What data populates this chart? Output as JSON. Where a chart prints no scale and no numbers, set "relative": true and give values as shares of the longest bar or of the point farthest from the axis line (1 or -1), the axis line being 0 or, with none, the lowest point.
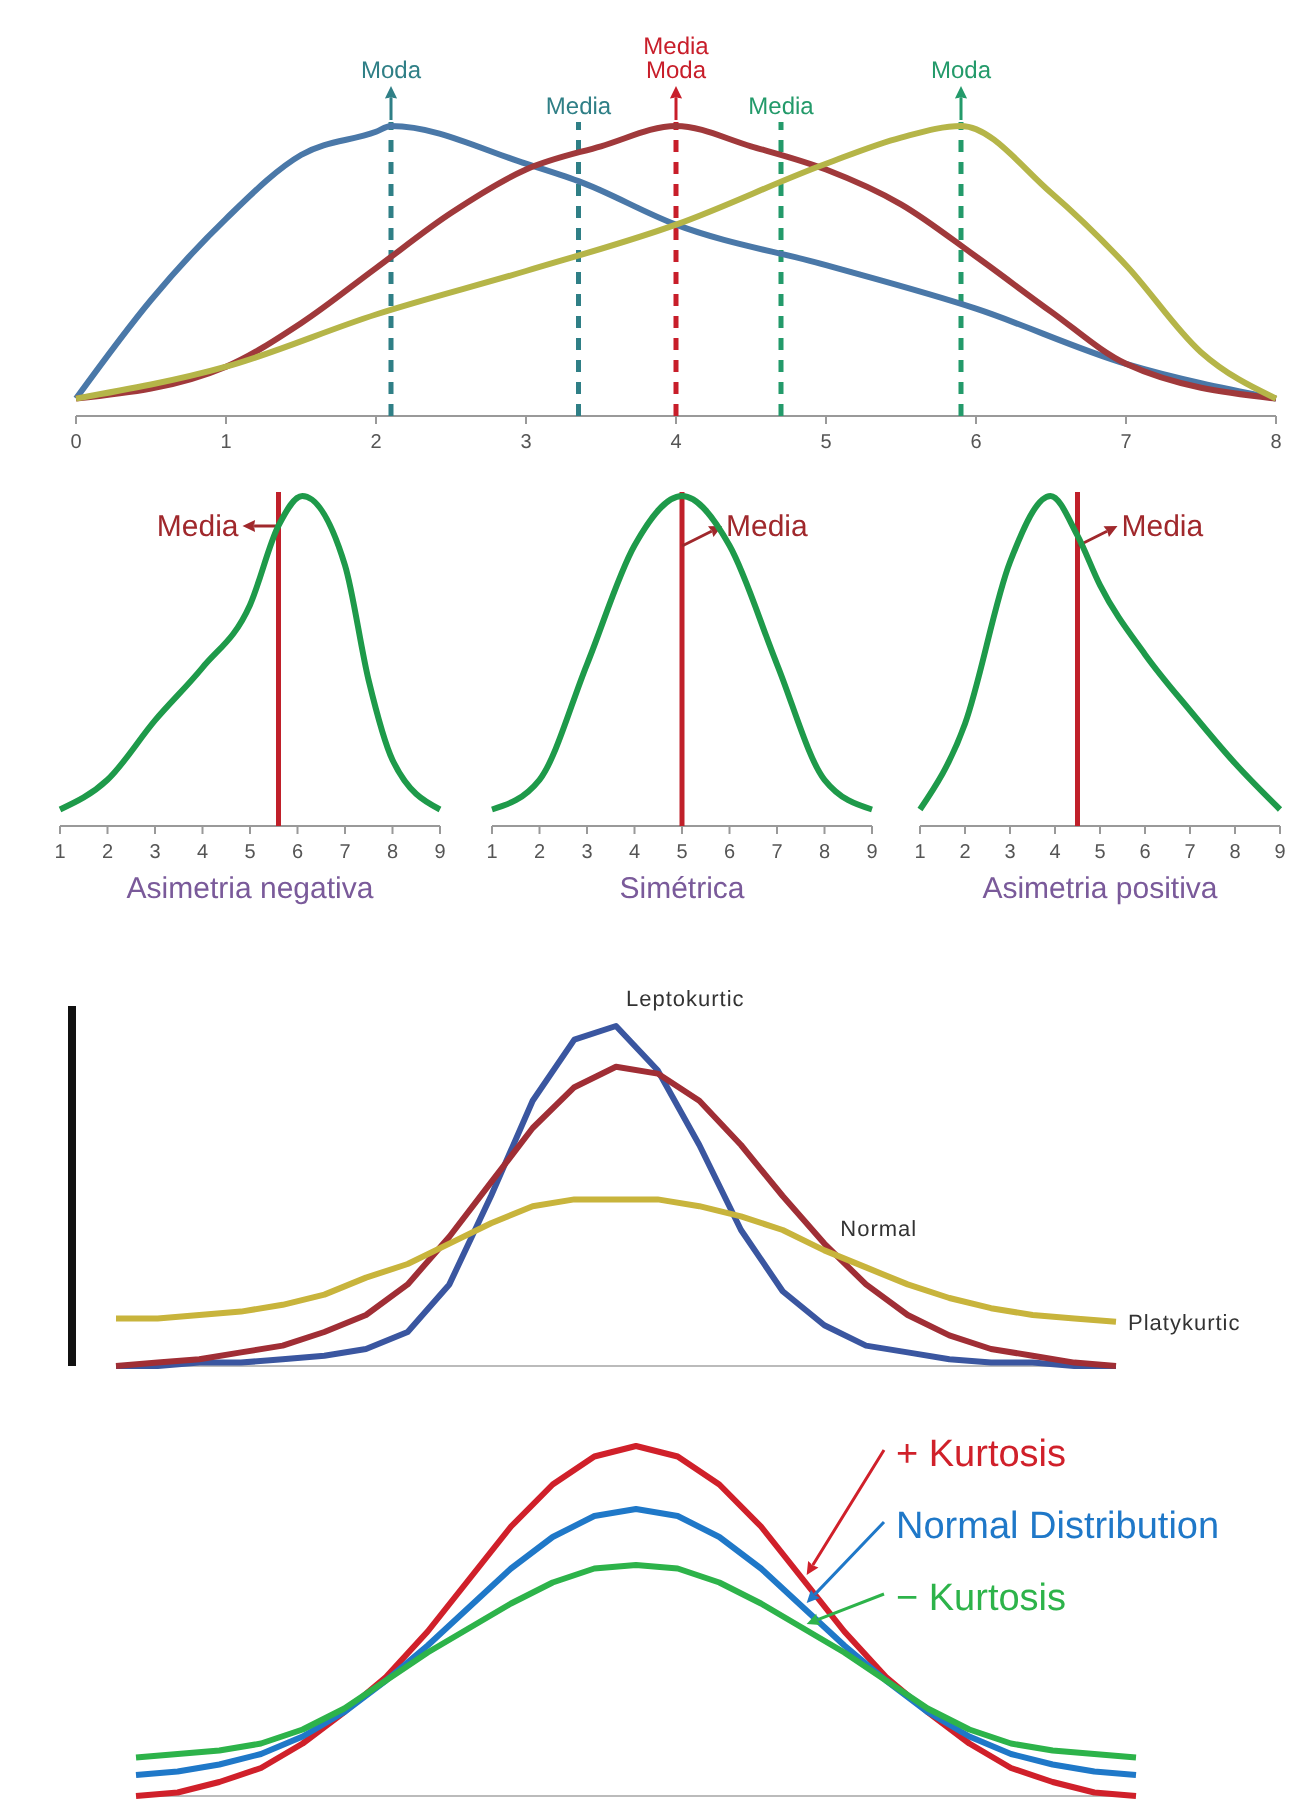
{
  "chart_data": [
    {
      "type": "line",
      "relative": true,
      "xlim": [
        0,
        8
      ],
      "xticks": [
        0,
        1,
        2,
        3,
        4,
        5,
        6,
        7,
        8
      ],
      "series": [
        {
          "color": "#4a78a8",
          "x": [
            0,
            0.5,
            1,
            1.5,
            2,
            2.1,
            3,
            3.35,
            4,
            5,
            6,
            7,
            8
          ],
          "values": [
            0.06,
            0.4,
            0.68,
            0.9,
            0.98,
            1,
            0.87,
            0.81,
            0.66,
            0.52,
            0.37,
            0.18,
            0.06
          ]
        },
        {
          "color": "#a0393b",
          "x": [
            0,
            1,
            1.5,
            2,
            2.5,
            3,
            3.5,
            4,
            4.5,
            5,
            5.5,
            6,
            6.5,
            7,
            8
          ],
          "values": [
            0.06,
            0.17,
            0.32,
            0.51,
            0.7,
            0.85,
            0.93,
            1,
            0.93,
            0.85,
            0.73,
            0.55,
            0.36,
            0.18,
            0.06
          ]
        },
        {
          "color": "#b5b548",
          "x": [
            0,
            1,
            2,
            3,
            4,
            5,
            5.5,
            5.9,
            6.5,
            7,
            7.5,
            8
          ],
          "values": [
            0.06,
            0.17,
            0.35,
            0.5,
            0.66,
            0.87,
            0.96,
            1,
            0.77,
            0.52,
            0.22,
            0.06
          ]
        }
      ],
      "ref_lines": [
        {
          "axis": "x",
          "value": 2.1,
          "label": "Moda",
          "color": "#2f7f86",
          "line_style": "dashed"
        },
        {
          "axis": "x",
          "value": 3.35,
          "label": "Media",
          "color": "#2f7f86",
          "line_style": "dashed"
        },
        {
          "axis": "x",
          "value": 4,
          "label": "Media\nModa",
          "color": "#c81e2a",
          "line_style": "dashed"
        },
        {
          "axis": "x",
          "value": 4.7,
          "label": "Media",
          "color": "#239a6a",
          "line_style": "dashed"
        },
        {
          "axis": "x",
          "value": 5.9,
          "label": "Moda",
          "color": "#239a6a",
          "line_style": "dashed"
        }
      ]
    },
    {
      "type": "line",
      "relative": true,
      "xlabel": "Asimetria negativa",
      "xlim": [
        1,
        9
      ],
      "xticks": [
        1,
        2,
        3,
        4,
        5,
        6,
        7,
        8,
        9
      ],
      "series": [
        {
          "color": "#1e9a4a",
          "x": [
            1,
            2,
            3,
            4,
            5,
            5.6,
            6.1,
            7,
            7.5,
            8,
            9
          ],
          "values": [
            0.05,
            0.14,
            0.32,
            0.48,
            0.67,
            0.91,
            1,
            0.79,
            0.44,
            0.2,
            0.05
          ]
        }
      ],
      "ref_lines": [
        {
          "axis": "x",
          "value": 5.6,
          "label": "Media",
          "color": "#c0202a"
        }
      ]
    },
    {
      "type": "line",
      "relative": true,
      "xlabel": "Simétrica",
      "xlim": [
        1,
        9
      ],
      "xticks": [
        1,
        2,
        3,
        4,
        5,
        6,
        7,
        8,
        9
      ],
      "series": [
        {
          "color": "#1e9a4a",
          "x": [
            1,
            2,
            3,
            4,
            5,
            6,
            7,
            8,
            9
          ],
          "values": [
            0.05,
            0.14,
            0.49,
            0.85,
            1,
            0.85,
            0.49,
            0.14,
            0.05
          ]
        }
      ],
      "ref_lines": [
        {
          "axis": "x",
          "value": 5,
          "label": "Media",
          "color": "#c0202a"
        }
      ]
    },
    {
      "type": "line",
      "relative": true,
      "xlabel": "Asimetria positiva",
      "xlim": [
        1,
        9
      ],
      "xticks": [
        1,
        2,
        3,
        4,
        5,
        6,
        7,
        8,
        9
      ],
      "series": [
        {
          "color": "#1e9a4a",
          "x": [
            1,
            2,
            3,
            3.9,
            4.5,
            5,
            6,
            7,
            8,
            9
          ],
          "values": [
            0.05,
            0.31,
            0.8,
            1,
            0.88,
            0.73,
            0.52,
            0.35,
            0.19,
            0.05
          ]
        }
      ],
      "ref_lines": [
        {
          "axis": "x",
          "value": 4.5,
          "label": "Media",
          "color": "#c0202a"
        }
      ]
    },
    {
      "type": "line",
      "relative": true,
      "categories": [
        null,
        null,
        null,
        null,
        null,
        null,
        null,
        null,
        null,
        null,
        null,
        null,
        null,
        null,
        null,
        null,
        null,
        null,
        null,
        null,
        null,
        null,
        null,
        null,
        null
      ],
      "series": [
        {
          "name": "Leptokurtic",
          "color": "#3a56a0",
          "values": [
            0,
            0,
            0.01,
            0.01,
            0.02,
            0.03,
            0.05,
            0.1,
            0.24,
            0.5,
            0.78,
            0.96,
            1,
            0.87,
            0.65,
            0.4,
            0.22,
            0.12,
            0.06,
            0.04,
            0.02,
            0.01,
            0.01,
            0,
            0
          ]
        },
        {
          "name": "Normal",
          "color": "#a02e35",
          "values": [
            0,
            0.01,
            0.02,
            0.04,
            0.06,
            0.1,
            0.15,
            0.24,
            0.38,
            0.54,
            0.7,
            0.82,
            0.88,
            0.86,
            0.78,
            0.65,
            0.5,
            0.36,
            0.24,
            0.15,
            0.09,
            0.05,
            0.03,
            0.01,
            0
          ]
        },
        {
          "name": "Platykurtic",
          "color": "#c8b43c",
          "values": [
            0.14,
            0.14,
            0.15,
            0.16,
            0.18,
            0.21,
            0.26,
            0.3,
            0.36,
            0.42,
            0.47,
            0.49,
            0.49,
            0.49,
            0.47,
            0.44,
            0.4,
            0.34,
            0.29,
            0.24,
            0.2,
            0.17,
            0.15,
            0.14,
            0.13
          ]
        }
      ]
    },
    {
      "type": "line",
      "relative": true,
      "categories": [
        null,
        null,
        null,
        null,
        null,
        null,
        null,
        null,
        null,
        null,
        null,
        null,
        null,
        null,
        null,
        null,
        null,
        null,
        null,
        null,
        null,
        null,
        null,
        null,
        null
      ],
      "series": [
        {
          "name": "+ Kurtosis",
          "color": "#d0202a",
          "values": [
            0,
            0.01,
            0.04,
            0.08,
            0.15,
            0.24,
            0.34,
            0.47,
            0.62,
            0.77,
            0.89,
            0.97,
            1,
            0.97,
            0.89,
            0.77,
            0.62,
            0.47,
            0.34,
            0.24,
            0.15,
            0.08,
            0.04,
            0.01,
            0
          ]
        },
        {
          "name": "Normal Distribution",
          "color": "#1f78c8",
          "values": [
            0.06,
            0.07,
            0.09,
            0.12,
            0.17,
            0.24,
            0.33,
            0.43,
            0.54,
            0.65,
            0.74,
            0.8,
            0.82,
            0.8,
            0.74,
            0.65,
            0.54,
            0.43,
            0.33,
            0.24,
            0.17,
            0.12,
            0.09,
            0.07,
            0.06
          ]
        },
        {
          "name": "− Kurtosis",
          "color": "#2db34a",
          "values": [
            0.11,
            0.12,
            0.13,
            0.15,
            0.19,
            0.25,
            0.33,
            0.41,
            0.48,
            0.55,
            0.61,
            0.65,
            0.66,
            0.65,
            0.61,
            0.55,
            0.48,
            0.41,
            0.33,
            0.25,
            0.19,
            0.15,
            0.13,
            0.12,
            0.11
          ]
        }
      ]
    }
  ]
}
